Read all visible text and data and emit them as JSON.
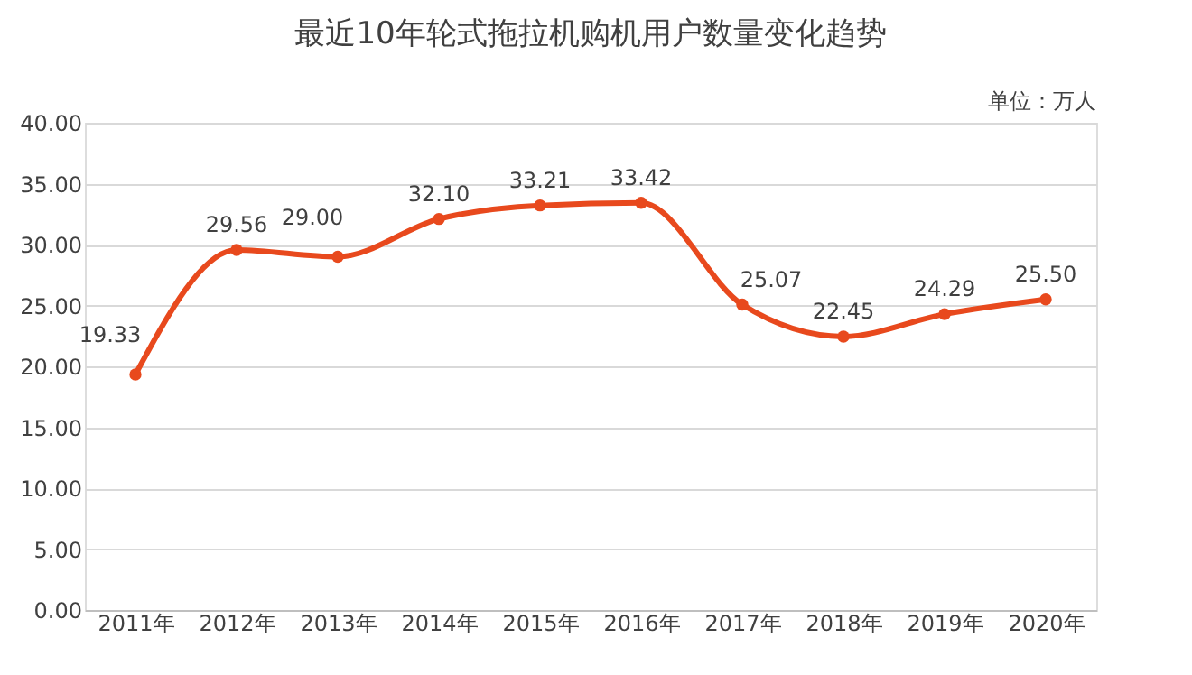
{
  "chart_data": {
    "type": "line",
    "title": "最近10年轮式拖拉机购机用户数量变化趋势",
    "annotations": [
      "单位：万人"
    ],
    "categories": [
      "2011年",
      "2012年",
      "2013年",
      "2014年",
      "2015年",
      "2016年",
      "2017年",
      "2018年",
      "2019年",
      "2020年"
    ],
    "series": [
      {
        "color": "#e8491d",
        "values": [
          19.33,
          29.56,
          29.0,
          32.1,
          33.21,
          33.42,
          25.07,
          22.45,
          24.29,
          25.5
        ],
        "value_labels": [
          "19.33",
          "29.56",
          "29.00",
          "32.10",
          "33.21",
          "33.42",
          "25.07",
          "22.45",
          "24.29",
          "25.50"
        ]
      }
    ],
    "ylim": [
      0,
      40
    ],
    "yticks": [
      {
        "value": 0,
        "label": "0.00"
      },
      {
        "value": 5,
        "label": "5.00"
      },
      {
        "value": 10,
        "label": "10.00"
      },
      {
        "value": 15,
        "label": "15.00"
      },
      {
        "value": 20,
        "label": "20.00"
      },
      {
        "value": 25,
        "label": "25.00"
      },
      {
        "value": 30,
        "label": "30.00"
      },
      {
        "value": 35,
        "label": "35.00"
      },
      {
        "value": 40,
        "label": "40.00"
      }
    ],
    "grid": "y",
    "marker": "circle",
    "line_style": "solid"
  }
}
